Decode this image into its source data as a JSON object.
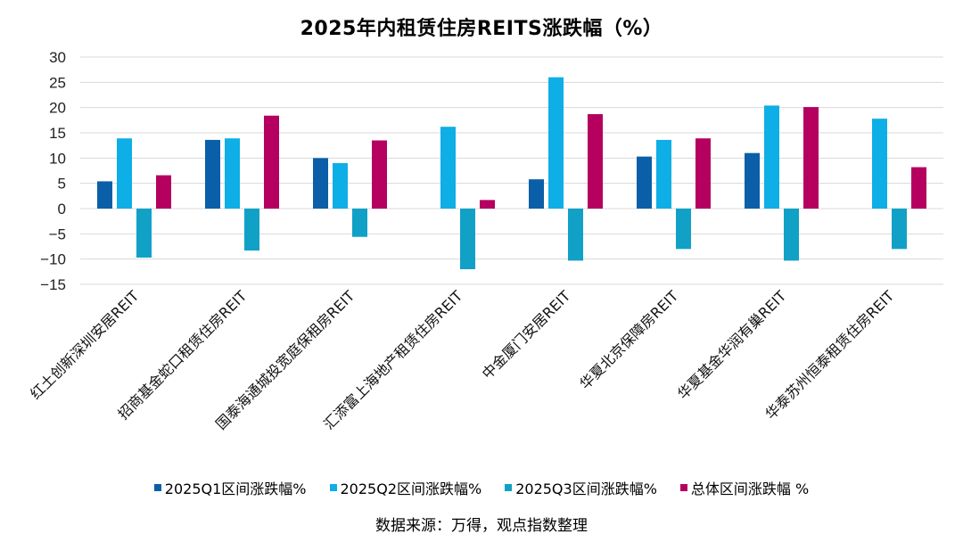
{
  "chart_data": {
    "type": "bar",
    "title": "2025年内租赁住房REITS涨跌幅（%）",
    "xlabel": "",
    "ylabel": "",
    "ylim": [
      -15,
      30
    ],
    "yticks": [
      30,
      25,
      20,
      15,
      10,
      5,
      0,
      -5,
      -10,
      -15
    ],
    "grid": true,
    "legend_position": "bottom",
    "categories": [
      "红土创新深圳安居REIT",
      "招商基金蛇口租赁住房REIT",
      "国泰海通城投宽庭保租房REIT",
      "汇添富上海地产租赁住房REIT",
      "中金厦门安居REIT",
      "华夏北京保障房REIT",
      "华夏基金华润有巢REIT",
      "华泰苏州恒泰租赁住房REIT"
    ],
    "series": [
      {
        "name": "2025Q1区间涨跌幅%",
        "color": "#0a5fa8",
        "values": [
          5.4,
          13.6,
          10.0,
          null,
          5.8,
          10.3,
          11.0,
          null
        ]
      },
      {
        "name": "2025Q2区间涨跌幅%",
        "color": "#0eaee6",
        "values": [
          13.9,
          13.9,
          9.0,
          16.2,
          26.0,
          13.6,
          20.4,
          17.8
        ]
      },
      {
        "name": "2025Q3区间涨跌幅%",
        "color": "#11a1c6",
        "values": [
          -9.7,
          -8.3,
          -5.6,
          -12.0,
          -10.3,
          -8.0,
          -10.3,
          -8.0
        ]
      },
      {
        "name": "总体区间涨跌幅 %",
        "color": "#b5005f",
        "values": [
          6.6,
          18.4,
          13.5,
          1.7,
          18.7,
          13.9,
          20.1,
          8.2
        ]
      }
    ],
    "source": "数据来源：万得，观点指数整理"
  }
}
